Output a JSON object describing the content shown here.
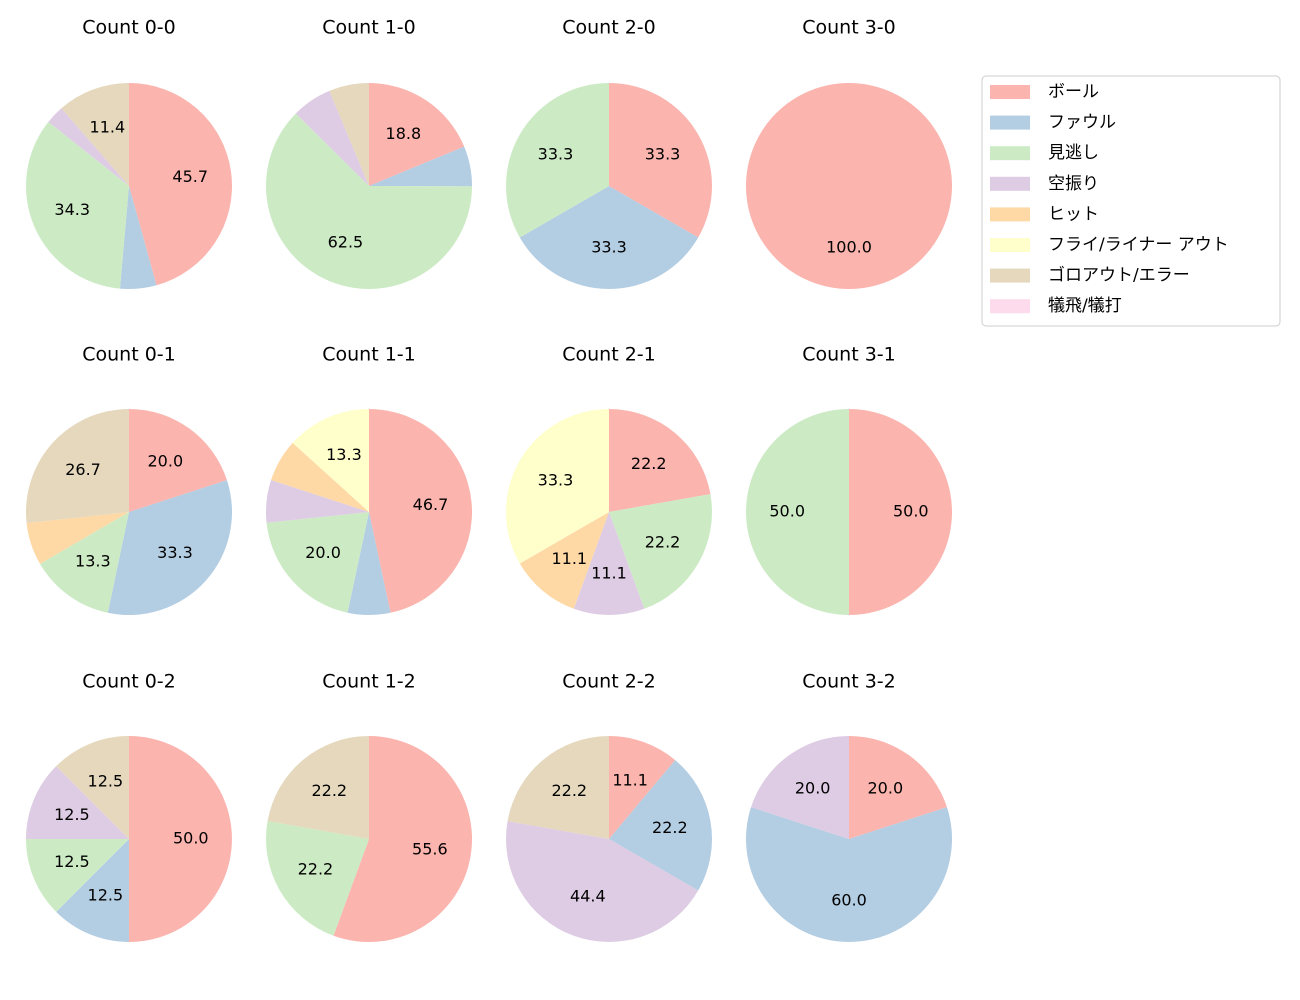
{
  "legend": {
    "items": [
      {
        "name": "ボール",
        "color": "#fbb4ae"
      },
      {
        "name": "ファウル",
        "color": "#b3cde3"
      },
      {
        "name": "見逃し",
        "color": "#ccebc5"
      },
      {
        "name": "空振り",
        "color": "#decbe4"
      },
      {
        "name": "ヒット",
        "color": "#fed9a6"
      },
      {
        "name": "フライ/ライナー アウト",
        "color": "#ffffcc"
      },
      {
        "name": "ゴロアウト/エラー",
        "color": "#e5d8bd"
      },
      {
        "name": "犠飛/犠打",
        "color": "#fddaec"
      }
    ]
  },
  "chart_data": [
    {
      "type": "pie",
      "title": "Count 0-0",
      "categories": [
        "ボール",
        "ファウル",
        "見逃し",
        "空振り",
        "ゴロアウト/エラー"
      ],
      "values": [
        45.7,
        5.7,
        34.3,
        2.9,
        11.4
      ],
      "value_labels": [
        "45.7",
        null,
        "34.3",
        null,
        "11.4"
      ]
    },
    {
      "type": "pie",
      "title": "Count 1-0",
      "categories": [
        "ボール",
        "ファウル",
        "見逃し",
        "空振り",
        "ゴロアウト/エラー"
      ],
      "values": [
        18.8,
        6.3,
        62.5,
        6.3,
        6.3
      ],
      "value_labels": [
        "18.8",
        null,
        "62.5",
        null,
        null
      ]
    },
    {
      "type": "pie",
      "title": "Count 2-0",
      "categories": [
        "ボール",
        "ファウル",
        "見逃し"
      ],
      "values": [
        33.3,
        33.3,
        33.3
      ],
      "value_labels": [
        "33.3",
        "33.3",
        "33.3"
      ]
    },
    {
      "type": "pie",
      "title": "Count 3-0",
      "categories": [
        "ボール"
      ],
      "values": [
        100
      ],
      "value_labels": [
        "100.0"
      ]
    },
    {
      "type": "pie",
      "title": "Count 0-1",
      "categories": [
        "ボール",
        "ファウル",
        "見逃し",
        "ヒット",
        "ゴロアウト/エラー"
      ],
      "values": [
        20,
        33.3,
        13.3,
        6.7,
        26.7
      ],
      "value_labels": [
        "20.0",
        "33.3",
        "13.3",
        null,
        "26.7"
      ]
    },
    {
      "type": "pie",
      "title": "Count 1-1",
      "categories": [
        "ボール",
        "ファウル",
        "見逃し",
        "空振り",
        "ヒット",
        "フライ/ライナー アウト"
      ],
      "values": [
        46.7,
        6.7,
        20,
        6.7,
        6.7,
        13.3
      ],
      "value_labels": [
        "46.7",
        null,
        "20.0",
        null,
        null,
        "13.3"
      ]
    },
    {
      "type": "pie",
      "title": "Count 2-1",
      "categories": [
        "ボール",
        "見逃し",
        "空振り",
        "ヒット",
        "フライ/ライナー アウト"
      ],
      "values": [
        22.2,
        22.2,
        11.1,
        11.1,
        33.3
      ],
      "value_labels": [
        "22.2",
        "22.2",
        "11.1",
        "11.1",
        "33.3"
      ]
    },
    {
      "type": "pie",
      "title": "Count 3-1",
      "categories": [
        "ボール",
        "見逃し"
      ],
      "values": [
        50,
        50
      ],
      "value_labels": [
        "50.0",
        "50.0"
      ]
    },
    {
      "type": "pie",
      "title": "Count 0-2",
      "categories": [
        "ボール",
        "ファウル",
        "見逃し",
        "空振り",
        "ゴロアウト/エラー"
      ],
      "values": [
        50,
        12.5,
        12.5,
        12.5,
        12.5
      ],
      "value_labels": [
        "50.0",
        "12.5",
        "12.5",
        "12.5",
        "12.5"
      ]
    },
    {
      "type": "pie",
      "title": "Count 1-2",
      "categories": [
        "ボール",
        "見逃し",
        "ゴロアウト/エラー"
      ],
      "values": [
        55.6,
        22.2,
        22.2
      ],
      "value_labels": [
        "55.6",
        "22.2",
        "22.2"
      ]
    },
    {
      "type": "pie",
      "title": "Count 2-2",
      "categories": [
        "ボール",
        "ファウル",
        "空振り",
        "ゴロアウト/エラー"
      ],
      "values": [
        11.1,
        22.2,
        44.4,
        22.2
      ],
      "value_labels": [
        "11.1",
        "22.2",
        "44.4",
        "22.2"
      ]
    },
    {
      "type": "pie",
      "title": "Count 3-2",
      "categories": [
        "ボール",
        "ファウル",
        "空振り"
      ],
      "values": [
        20,
        60,
        20
      ],
      "value_labels": [
        "20.0",
        "60.0",
        "20.0"
      ]
    }
  ]
}
